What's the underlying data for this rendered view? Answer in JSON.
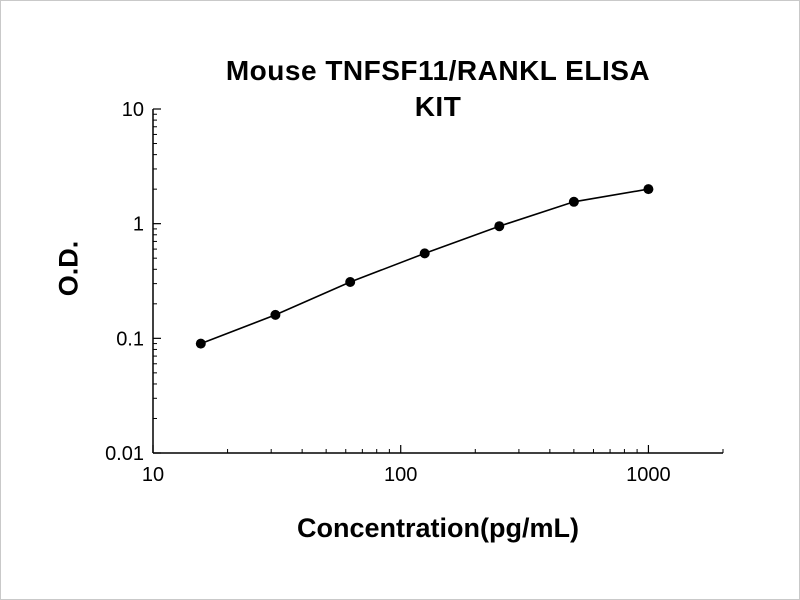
{
  "page": {
    "background_color": "#ffffff",
    "border_color": "#c9c9c9",
    "foreground_color": "#000000"
  },
  "chart_data": {
    "type": "line",
    "title": "Mouse TNFSF11/RANKL ELISA KIT",
    "title_lines": [
      "Mouse TNFSF11/RANKL ELISA",
      "KIT"
    ],
    "xlabel": "Concentration(pg/mL)",
    "ylabel": "O.D.",
    "x_scale": "log",
    "y_scale": "log",
    "xlim": [
      10,
      2000
    ],
    "ylim": [
      0.01,
      10
    ],
    "x_ticks": [
      10,
      100,
      1000
    ],
    "x_tick_labels": [
      "10",
      "100",
      "1000"
    ],
    "y_ticks": [
      0.01,
      0.1,
      1,
      10
    ],
    "y_tick_labels": [
      "0.01",
      "0.1",
      "1",
      "10"
    ],
    "grid": false,
    "legend": "none",
    "series": [
      {
        "name": "standard-curve",
        "color": "#000000",
        "marker": "circle",
        "x": [
          15.6,
          31.2,
          62.5,
          125,
          250,
          500,
          1000
        ],
        "y": [
          0.09,
          0.16,
          0.31,
          0.55,
          0.95,
          1.55,
          2.0
        ]
      }
    ]
  }
}
